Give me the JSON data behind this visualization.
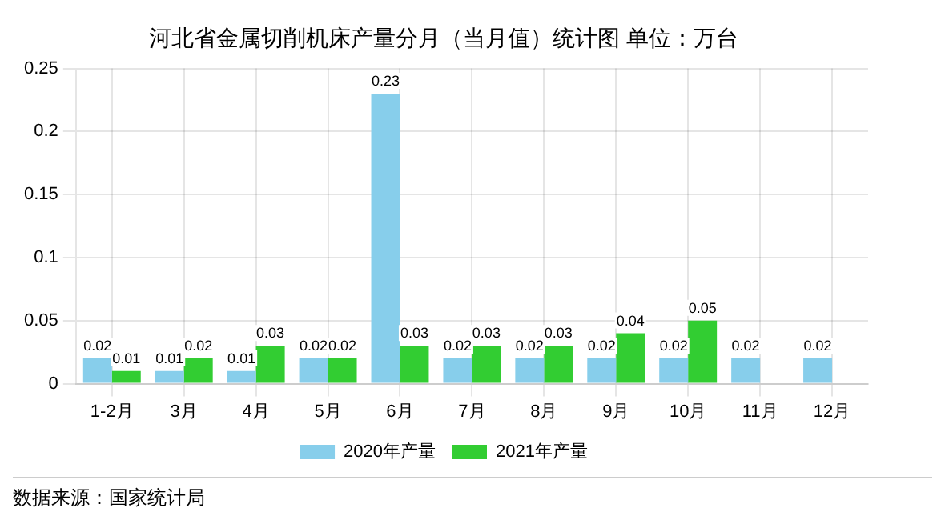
{
  "chart_data": {
    "type": "bar",
    "title": "河北省金属切削机床产量分月（当月值）统计图 单位：万台",
    "categories": [
      "1-2月",
      "3月",
      "4月",
      "5月",
      "6月",
      "7月",
      "8月",
      "9月",
      "10月",
      "11月",
      "12月"
    ],
    "series": [
      {
        "name": "2020年产量",
        "color": "#87ceeb",
        "values": [
          0.02,
          0.01,
          0.01,
          0.02,
          0.23,
          0.02,
          0.02,
          0.02,
          0.02,
          0.02,
          0.02
        ]
      },
      {
        "name": "2021年产量",
        "color": "#32cd32",
        "values": [
          0.01,
          0.02,
          0.03,
          0.02,
          0.03,
          0.03,
          0.03,
          0.04,
          0.05,
          null,
          null
        ]
      }
    ],
    "ylim": [
      0,
      0.25
    ],
    "yticks": [
      0,
      0.05,
      0.1,
      0.15,
      0.2,
      0.25
    ],
    "grid": true,
    "legend": "bottom",
    "data_labels": true,
    "annotations": [
      "数据来源：国家统计局"
    ]
  }
}
